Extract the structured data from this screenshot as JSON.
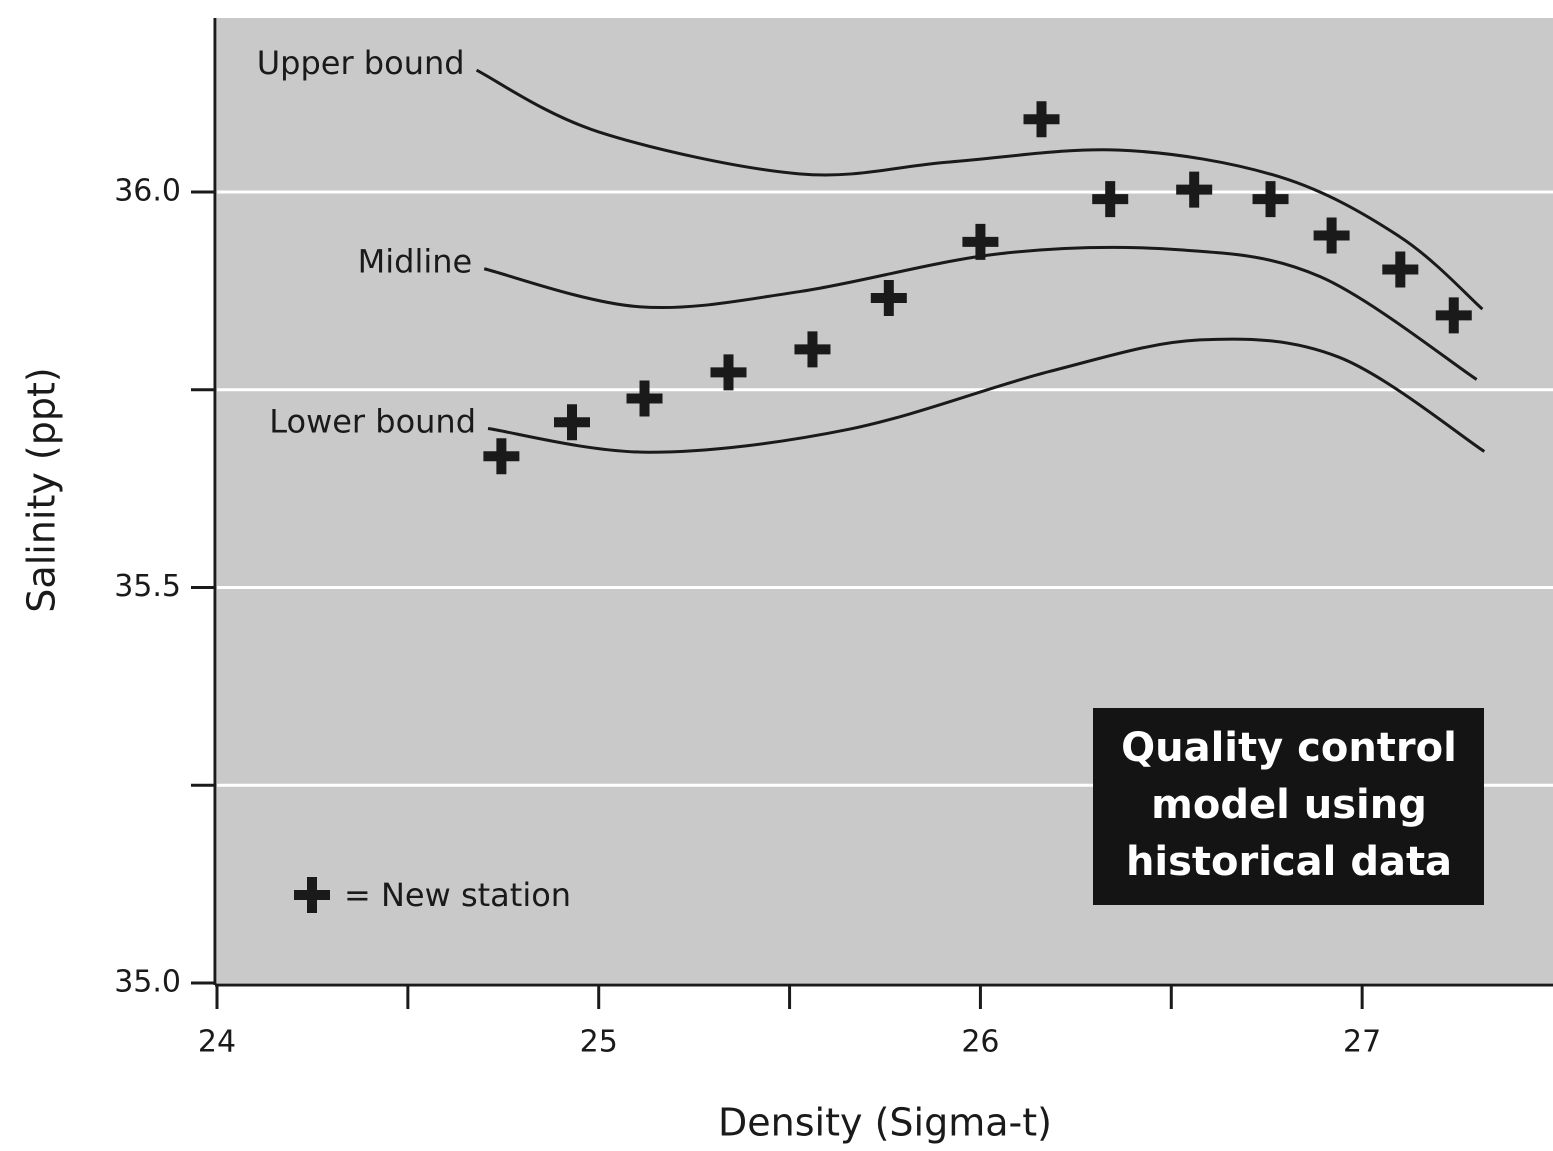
{
  "chart_data": {
    "type": "scatter",
    "xlabel": "Density (Sigma-t)",
    "ylabel": "Salinity (ppt)",
    "xlim": [
      24,
      27.5
    ],
    "ylim": [
      35.0,
      36.22
    ],
    "xticks": [
      24,
      25,
      26,
      27
    ],
    "xminorticks": [
      24.5,
      25.5,
      26.5
    ],
    "yticks": [
      {
        "value": 35.0,
        "label": "35.0"
      },
      {
        "value": 35.5,
        "label": "35.5"
      },
      {
        "value": 36.0,
        "label": "36.0"
      }
    ],
    "yminorticks": [
      35.25,
      35.75
    ],
    "grid": true,
    "background": "#c9c9c9",
    "series": [
      {
        "name": "Upper bound",
        "type": "line",
        "color": "#1a1a1a",
        "x": [
          24.68,
          25.0,
          25.525,
          25.92,
          26.365,
          26.785,
          27.1,
          27.315
        ],
        "values": [
          36.154,
          36.076,
          36.023,
          36.038,
          36.053,
          36.019,
          35.943,
          35.852
        ]
      },
      {
        "name": "Midline",
        "type": "line",
        "color": "#1a1a1a",
        "x": [
          24.7,
          25.105,
          25.525,
          26.05,
          26.52,
          26.89,
          27.3
        ],
        "values": [
          35.903,
          35.855,
          35.874,
          35.922,
          35.927,
          35.893,
          35.763
        ]
      },
      {
        "name": "Lower bound",
        "type": "line",
        "color": "#1a1a1a",
        "x": [
          24.71,
          25.13,
          25.655,
          26.18,
          26.575,
          26.94,
          27.32
        ],
        "values": [
          35.701,
          35.671,
          35.7,
          35.773,
          35.813,
          35.791,
          35.672
        ]
      },
      {
        "name": "= New station",
        "type": "scatter",
        "color": "#1a1a1a",
        "x": [
          24.745,
          24.93,
          25.12,
          25.34,
          25.56,
          25.76,
          26.0,
          26.16,
          26.34,
          26.56,
          26.76,
          26.92,
          27.1,
          27.24
        ],
        "values": [
          35.666,
          35.709,
          35.739,
          35.772,
          35.801,
          35.866,
          35.937,
          36.092,
          35.991,
          36.003,
          35.991,
          35.945,
          35.902,
          35.844
        ]
      }
    ],
    "box_text": [
      "Quality control",
      "model using",
      "historical data"
    ]
  }
}
